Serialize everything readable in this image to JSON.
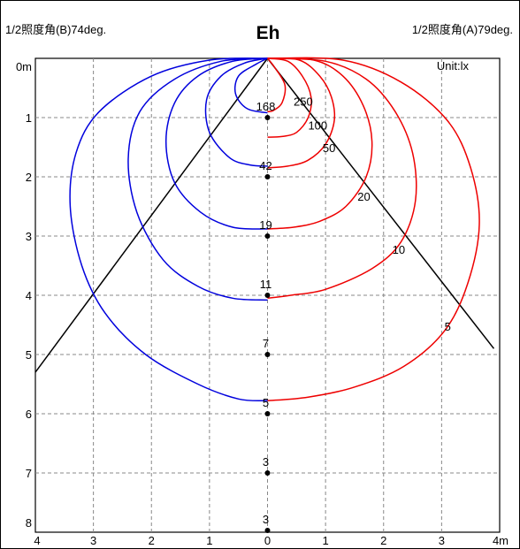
{
  "chart_data": {
    "type": "line",
    "title": "Eh",
    "header_left": "1/2照度角(B)74deg.",
    "header_right": "1/2照度角(A)79deg.",
    "unit_label": "Unit:lx",
    "xlim": [
      -4,
      4
    ],
    "ylim": [
      0,
      8
    ],
    "x_ticks": [
      {
        "v": -4,
        "label": "4"
      },
      {
        "v": -3,
        "label": "3"
      },
      {
        "v": -2,
        "label": "2"
      },
      {
        "v": -1,
        "label": "1"
      },
      {
        "v": 0,
        "label": "0"
      },
      {
        "v": 1,
        "label": "1"
      },
      {
        "v": 2,
        "label": "2"
      },
      {
        "v": 3,
        "label": "3"
      },
      {
        "v": 4,
        "label": "4m"
      }
    ],
    "y_ticks": [
      {
        "v": 0,
        "label": "0m"
      },
      {
        "v": 1,
        "label": "1"
      },
      {
        "v": 2,
        "label": "2"
      },
      {
        "v": 3,
        "label": "3"
      },
      {
        "v": 4,
        "label": "4"
      },
      {
        "v": 5,
        "label": "5"
      },
      {
        "v": 6,
        "label": "6"
      },
      {
        "v": 7,
        "label": "7"
      },
      {
        "v": 8,
        "label": "8"
      }
    ],
    "grid": true,
    "colors": {
      "b_side": "#0000dd",
      "a_side": "#ee0000",
      "beam": "#000000",
      "grid": "#888888"
    },
    "beam_lines": [
      {
        "points": [
          [
            0,
            0
          ],
          [
            -4,
            5.3
          ]
        ]
      },
      {
        "points": [
          [
            0,
            0
          ],
          [
            3.9,
            4.9
          ]
        ]
      }
    ],
    "center_values": [
      {
        "y": 1,
        "label": "168"
      },
      {
        "y": 2,
        "label": "42"
      },
      {
        "y": 3,
        "label": "19"
      },
      {
        "y": 4,
        "label": "11"
      },
      {
        "y": 5,
        "label": "7"
      },
      {
        "y": 6,
        "label": "5"
      },
      {
        "y": 7,
        "label": "3"
      },
      {
        "y": 8,
        "label": "3"
      }
    ],
    "series": [
      {
        "side": "B",
        "label": "168",
        "points": [
          [
            0,
            0
          ],
          [
            -0.2,
            0.1
          ],
          [
            -0.5,
            0.3
          ],
          [
            -0.55,
            0.6
          ],
          [
            -0.35,
            0.85
          ],
          [
            0,
            0.92
          ]
        ]
      },
      {
        "side": "B",
        "label": "42",
        "points": [
          [
            0,
            0
          ],
          [
            -0.4,
            0.08
          ],
          [
            -0.8,
            0.3
          ],
          [
            -1.05,
            0.7
          ],
          [
            -1.0,
            1.25
          ],
          [
            -0.65,
            1.68
          ],
          [
            -0.3,
            1.8
          ],
          [
            0,
            1.82
          ]
        ]
      },
      {
        "side": "B",
        "label": "19",
        "points": [
          [
            0,
            0
          ],
          [
            -0.6,
            0.05
          ],
          [
            -1.2,
            0.3
          ],
          [
            -1.6,
            0.75
          ],
          [
            -1.75,
            1.4
          ],
          [
            -1.6,
            2.1
          ],
          [
            -1.15,
            2.6
          ],
          [
            -0.6,
            2.85
          ],
          [
            0,
            2.88
          ]
        ]
      },
      {
        "side": "B",
        "label": "11",
        "points": [
          [
            0,
            0
          ],
          [
            -0.8,
            0.05
          ],
          [
            -1.6,
            0.35
          ],
          [
            -2.2,
            0.9
          ],
          [
            -2.4,
            1.7
          ],
          [
            -2.25,
            2.6
          ],
          [
            -1.8,
            3.4
          ],
          [
            -1.2,
            3.85
          ],
          [
            -0.6,
            4.05
          ],
          [
            0,
            4.08
          ]
        ]
      },
      {
        "side": "B",
        "label": "5",
        "points": [
          [
            0,
            0
          ],
          [
            -1.0,
            0.03
          ],
          [
            -2.0,
            0.3
          ],
          [
            -2.9,
            0.9
          ],
          [
            -3.3,
            1.6
          ],
          [
            -3.4,
            2.5
          ],
          [
            -3.2,
            3.5
          ],
          [
            -2.8,
            4.3
          ],
          [
            -2.1,
            5.0
          ],
          [
            -1.2,
            5.5
          ],
          [
            -0.5,
            5.75
          ],
          [
            0,
            5.78
          ]
        ]
      },
      {
        "side": "A",
        "label": "250",
        "points": [
          [
            0,
            0
          ],
          [
            0.12,
            0.15
          ],
          [
            0.3,
            0.45
          ],
          [
            0.25,
            0.75
          ],
          [
            0.1,
            0.88
          ],
          [
            0,
            0.9
          ]
        ]
      },
      {
        "side": "A",
        "label": "100",
        "points": [
          [
            0,
            0
          ],
          [
            0.35,
            0.05
          ],
          [
            0.6,
            0.3
          ],
          [
            0.75,
            0.65
          ],
          [
            0.7,
            1.0
          ],
          [
            0.5,
            1.25
          ],
          [
            0.25,
            1.32
          ],
          [
            0,
            1.33
          ]
        ]
      },
      {
        "side": "A",
        "label": "50",
        "points": [
          [
            0,
            0
          ],
          [
            0.55,
            0.03
          ],
          [
            0.9,
            0.3
          ],
          [
            1.1,
            0.65
          ],
          [
            1.15,
            1.05
          ],
          [
            1.0,
            1.45
          ],
          [
            0.7,
            1.72
          ],
          [
            0.35,
            1.82
          ],
          [
            0,
            1.85
          ]
        ]
      },
      {
        "side": "A",
        "label": "20",
        "points": [
          [
            0,
            0
          ],
          [
            0.8,
            0.03
          ],
          [
            1.3,
            0.3
          ],
          [
            1.65,
            0.8
          ],
          [
            1.8,
            1.4
          ],
          [
            1.7,
            2.0
          ],
          [
            1.35,
            2.5
          ],
          [
            0.9,
            2.75
          ],
          [
            0.45,
            2.85
          ],
          [
            0,
            2.88
          ]
        ]
      },
      {
        "side": "A",
        "label": "10",
        "points": [
          [
            0,
            0
          ],
          [
            1.0,
            0.05
          ],
          [
            1.7,
            0.35
          ],
          [
            2.2,
            0.9
          ],
          [
            2.5,
            1.6
          ],
          [
            2.55,
            2.4
          ],
          [
            2.3,
            3.1
          ],
          [
            1.8,
            3.55
          ],
          [
            1.0,
            3.9
          ],
          [
            0.4,
            4.0
          ],
          [
            0,
            4.05
          ]
        ]
      },
      {
        "side": "A",
        "label": "5",
        "points": [
          [
            0,
            0
          ],
          [
            1.3,
            0.03
          ],
          [
            2.3,
            0.4
          ],
          [
            3.1,
            1.05
          ],
          [
            3.5,
            1.85
          ],
          [
            3.65,
            2.8
          ],
          [
            3.45,
            3.8
          ],
          [
            3.05,
            4.6
          ],
          [
            2.35,
            5.2
          ],
          [
            1.5,
            5.55
          ],
          [
            0.7,
            5.72
          ],
          [
            0,
            5.78
          ]
        ]
      }
    ],
    "curve_labels": [
      {
        "text": "250",
        "x": 0.45,
        "y": 0.8
      },
      {
        "text": "100",
        "x": 0.7,
        "y": 1.2
      },
      {
        "text": "50",
        "x": 0.95,
        "y": 1.58
      },
      {
        "text": "20",
        "x": 1.55,
        "y": 2.4
      },
      {
        "text": "10",
        "x": 2.15,
        "y": 3.3
      },
      {
        "text": "5",
        "x": 3.05,
        "y": 4.6
      }
    ]
  }
}
